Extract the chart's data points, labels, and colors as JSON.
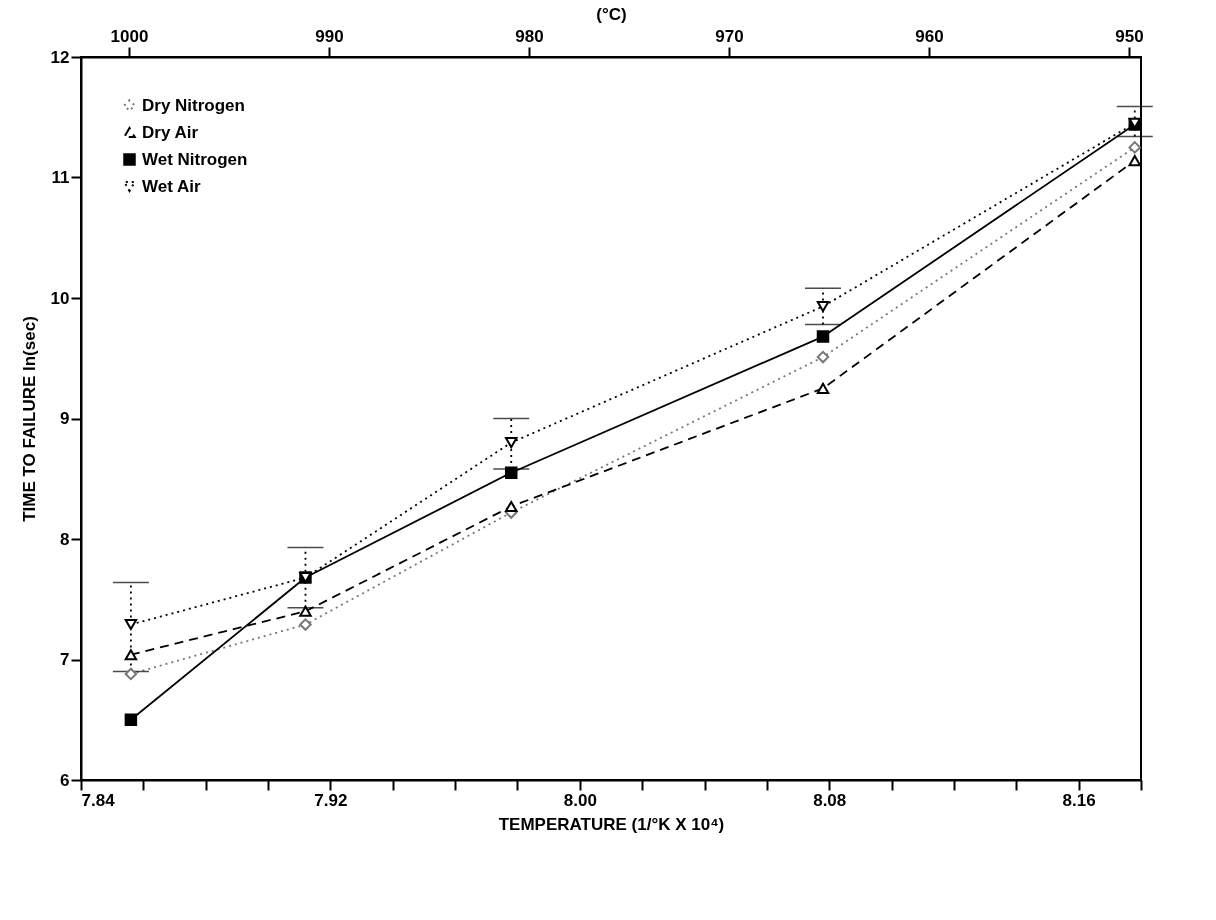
{
  "chart_data": {
    "type": "line",
    "xlabel": "TEMPERATURE (1/°K X 10⁴)",
    "ylabel": "TIME TO FAILURE  ln(sec)",
    "x2label": "(°C)",
    "x": [
      7.856,
      7.912,
      7.978,
      8.078,
      8.178
    ],
    "series": [
      {
        "name": "Dry Nitrogen",
        "color": "#777777",
        "marker": "diamond",
        "line_style": "dotted",
        "values": [
          6.88,
          7.29,
          8.22,
          9.51,
          11.25
        ]
      },
      {
        "name": "Dry Air",
        "color": "#000000",
        "marker": "triangle",
        "line_style": "dashed",
        "values": [
          7.04,
          7.4,
          8.27,
          9.25,
          11.14
        ]
      },
      {
        "name": "Wet Nitrogen",
        "color": "#000000",
        "marker": "square",
        "line_style": "solid",
        "values": [
          6.5,
          7.68,
          8.55,
          9.68,
          11.44
        ]
      },
      {
        "name": "Wet Air",
        "color": "#000000",
        "marker": "triangle-down",
        "line_style": "dotted",
        "values": [
          7.29,
          7.68,
          8.8,
          9.93,
          11.45
        ],
        "errors": [
          [
            6.9,
            7.64
          ],
          [
            7.43,
            7.93
          ],
          [
            8.58,
            9.0
          ],
          [
            9.78,
            10.08
          ],
          [
            11.34,
            11.59
          ]
        ]
      }
    ],
    "xlim": [
      7.84,
      8.18
    ],
    "xticks": [
      7.84,
      {
        "value": 7.86,
        "label": null
      },
      {
        "value": 7.88,
        "label": null
      },
      {
        "value": 7.9,
        "label": null
      },
      7.92,
      {
        "value": 7.94,
        "label": null
      },
      {
        "value": 7.96,
        "label": null
      },
      {
        "value": 7.98,
        "label": null
      },
      {
        "value": 8.0,
        "label": "8.00"
      },
      {
        "value": 8.02,
        "label": null
      },
      {
        "value": 8.04,
        "label": null
      },
      {
        "value": 8.06,
        "label": null
      },
      8.08,
      {
        "value": 8.1,
        "label": null
      },
      {
        "value": 8.12,
        "label": null
      },
      {
        "value": 8.14,
        "label": null
      },
      8.16,
      {
        "value": 8.18,
        "label": null
      }
    ],
    "x2lim": [
      1002.4,
      949.4
    ],
    "x2ticks": [
      1000,
      990,
      980,
      970,
      960,
      950
    ],
    "ylim": [
      6,
      12
    ],
    "yticks": [
      6,
      7,
      8,
      9,
      10,
      11,
      12
    ],
    "grid": false,
    "legend": "top left"
  }
}
